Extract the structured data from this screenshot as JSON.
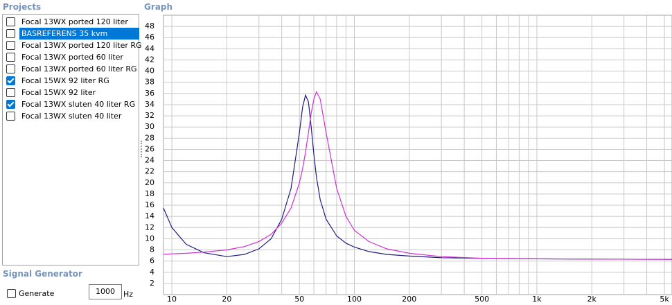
{
  "projects": {
    "title": "Projects",
    "items": [
      {
        "label": "Focal 13WX ported 120 liter",
        "checked": false,
        "selected": false
      },
      {
        "label": "BASREFERENS 35 kvm",
        "checked": false,
        "selected": true
      },
      {
        "label": "Focal 13WX ported 120 liter RG",
        "checked": false,
        "selected": false
      },
      {
        "label": "Focal 13WX ported 60 liter",
        "checked": false,
        "selected": false
      },
      {
        "label": "Focal 13WX ported 60 liter RG",
        "checked": false,
        "selected": false
      },
      {
        "label": "Focal 15WX 92 liter RG",
        "checked": true,
        "selected": false
      },
      {
        "label": "Focal 15WX 92 liter",
        "checked": false,
        "selected": false
      },
      {
        "label": "Focal 13WX sluten 40 liter RG",
        "checked": true,
        "selected": false
      },
      {
        "label": "Focal 13WX sluten 40 liter",
        "checked": false,
        "selected": false
      }
    ]
  },
  "signal_generator": {
    "title": "Signal Generator",
    "generate_label": "Generate",
    "generate_checked": false,
    "frequency": "1000",
    "unit": "Hz"
  },
  "chart_data": {
    "type": "line",
    "title": "Graph",
    "xscale": "log",
    "x": [
      9,
      10,
      12,
      15,
      20,
      25,
      30,
      35,
      40,
      45,
      50,
      52,
      54,
      56,
      58,
      60,
      62,
      65,
      70,
      80,
      90,
      100,
      120,
      150,
      200,
      300,
      500,
      1000,
      2000,
      5500
    ],
    "series": [
      {
        "color": "#1c1c82",
        "values": [
          15.5,
          12,
          9,
          7.5,
          6.8,
          7.2,
          8.2,
          10,
          13.5,
          19,
          29,
          33.5,
          35.7,
          34.5,
          30,
          25,
          21,
          17,
          13.5,
          10.5,
          9.2,
          8.5,
          7.7,
          7.2,
          6.9,
          6.6,
          6.5,
          6.4,
          6.35,
          6.3
        ]
      },
      {
        "color": "#d22fd2",
        "values": [
          7.2,
          7.3,
          7.4,
          7.6,
          8,
          8.6,
          9.5,
          10.8,
          12.8,
          15.5,
          20,
          22.5,
          25.5,
          29,
          32.5,
          35,
          36.3,
          35,
          29,
          19,
          14,
          11.5,
          9.5,
          8.2,
          7.4,
          6.8,
          6.5,
          6.4,
          6.35,
          6.3
        ]
      }
    ],
    "xlim": [
      9,
      5500
    ],
    "ylim": [
      0,
      50
    ],
    "xticks": [
      10,
      20,
      50,
      100,
      200,
      500,
      {
        "value": 1000,
        "label": "1k"
      },
      {
        "value": 2000,
        "label": "2k"
      },
      {
        "value": 5000,
        "label": "5k"
      }
    ],
    "xgrid": [
      10,
      20,
      30,
      40,
      50,
      60,
      70,
      80,
      90,
      100,
      200,
      300,
      400,
      500,
      600,
      700,
      800,
      900,
      1000,
      2000,
      3000,
      4000,
      5000
    ],
    "yticks": [
      2,
      4,
      6,
      8,
      10,
      12,
      14,
      16,
      18,
      20,
      22,
      24,
      26,
      28,
      30,
      32,
      34,
      36,
      38,
      40,
      42,
      44,
      46,
      48
    ],
    "grid": true
  }
}
